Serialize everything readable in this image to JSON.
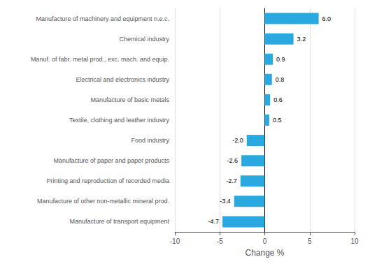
{
  "chart_data": {
    "type": "bar",
    "orientation": "horizontal",
    "categories": [
      "Manufacture of transport equipment",
      "Manufacture of other non-metallic mineral prod.",
      "Printing and reproduction of recorded media",
      "Manufacture of paper and paper products",
      "Food industry",
      "Textile, clothing and leather industry",
      "Manufacture of basic metals",
      "Electrical and electronics industry",
      "Manuf. of fabr. metal prod., exc. mach. and equip.",
      "Chemical industry",
      "Manufacture of machinery and equipment n.e.c."
    ],
    "values": [
      -4.7,
      -3.4,
      -2.7,
      -2.6,
      -2.0,
      0.5,
      0.6,
      0.8,
      0.9,
      3.2,
      6.0
    ],
    "value_labels": [
      "-4.7",
      "-3.4",
      "-2.7",
      "-2.6",
      "-2.0",
      "0.5",
      "0.6",
      "0.8",
      "0.9",
      "3.2",
      "6.0"
    ],
    "data_labels": true,
    "color": "#29a9e0",
    "xlabel": "Change %",
    "xlim": [
      -10,
      10
    ],
    "xticks": [
      -10,
      -5,
      0,
      5,
      10
    ],
    "grid": true
  }
}
